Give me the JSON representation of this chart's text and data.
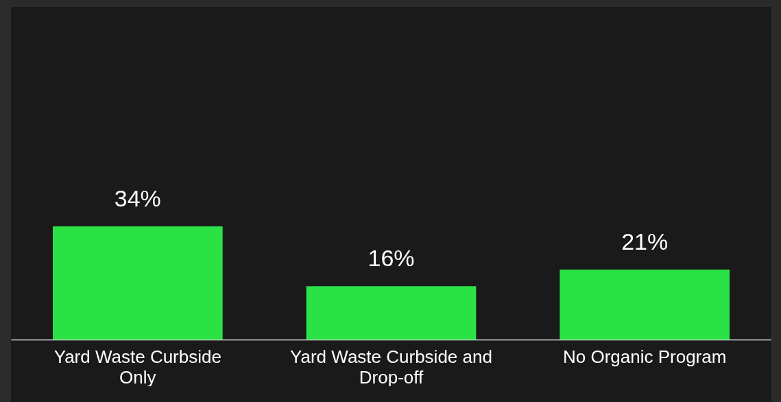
{
  "chart_data": {
    "type": "bar",
    "categories": [
      "Yard Waste Curbside Only",
      "Yard Waste Curbside and Drop-off",
      "No Organic Program"
    ],
    "values": [
      34,
      16,
      21
    ],
    "value_labels": [
      "34%",
      "16%",
      "21%"
    ],
    "color": "#2ae245",
    "tick_labels": "x"
  }
}
